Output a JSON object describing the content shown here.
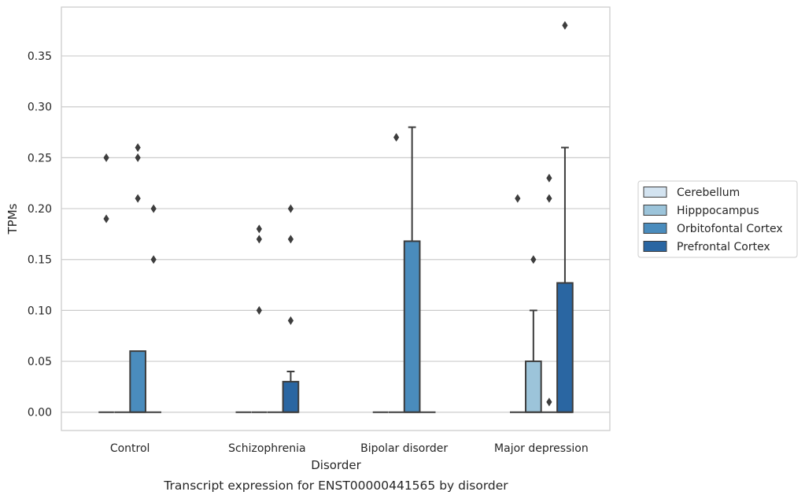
{
  "chart_data": {
    "type": "box",
    "title": "",
    "caption": "Transcript expression for ENST00000441565 by disorder",
    "xlabel": "Disorder",
    "ylabel": "TPMs",
    "ylim": [
      -0.018,
      0.398
    ],
    "yticks": [
      "0.00",
      "0.05",
      "0.10",
      "0.15",
      "0.20",
      "0.25",
      "0.30",
      "0.35"
    ],
    "yticks_values": [
      0,
      0.05,
      0.1,
      0.15,
      0.2,
      0.25,
      0.3,
      0.35
    ],
    "grid": "horizontal",
    "legend_position": "right",
    "categories": [
      "Control",
      "Schizophrenia",
      "Bipolar disorder",
      "Major depression"
    ],
    "series": [
      {
        "name": "Cerebellum",
        "color": "#d3e3f0",
        "boxes": [
          {
            "q1": 0,
            "median": 0,
            "q3": 0,
            "whisker_low": 0,
            "whisker_high": 0,
            "outliers": [
              0.19,
              0.25
            ]
          },
          {
            "q1": 0,
            "median": 0,
            "q3": 0,
            "whisker_low": 0,
            "whisker_high": 0,
            "outliers": []
          },
          {
            "q1": 0,
            "median": 0,
            "q3": 0,
            "whisker_low": 0,
            "whisker_high": 0,
            "outliers": []
          },
          {
            "q1": 0,
            "median": 0,
            "q3": 0,
            "whisker_low": 0,
            "whisker_high": 0,
            "outliers": [
              0.21
            ]
          }
        ]
      },
      {
        "name": "Hipppocampus",
        "color": "#9cc4da",
        "boxes": [
          {
            "q1": 0,
            "median": 0,
            "q3": 0,
            "whisker_low": 0,
            "whisker_high": 0,
            "outliers": []
          },
          {
            "q1": 0,
            "median": 0,
            "q3": 0,
            "whisker_low": 0,
            "whisker_high": 0,
            "outliers": [
              0.1,
              0.17,
              0.18
            ]
          },
          {
            "q1": 0,
            "median": 0,
            "q3": 0,
            "whisker_low": 0,
            "whisker_high": 0,
            "outliers": [
              0.27
            ]
          },
          {
            "q1": 0,
            "median": 0,
            "q3": 0.05,
            "whisker_low": 0,
            "whisker_high": 0.1,
            "outliers": [
              0.15
            ]
          }
        ]
      },
      {
        "name": "Orbitofontal Cortex",
        "color": "#4a8cbd",
        "boxes": [
          {
            "q1": 0,
            "median": 0,
            "q3": 0.06,
            "whisker_low": 0,
            "whisker_high": 0.06,
            "outliers": [
              0.21,
              0.25,
              0.26
            ]
          },
          {
            "q1": 0,
            "median": 0,
            "q3": 0,
            "whisker_low": 0,
            "whisker_high": 0,
            "outliers": []
          },
          {
            "q1": 0,
            "median": 0,
            "q3": 0.168,
            "whisker_low": 0,
            "whisker_high": 0.28,
            "outliers": []
          },
          {
            "q1": 0,
            "median": 0,
            "q3": 0,
            "whisker_low": 0,
            "whisker_high": 0,
            "outliers": [
              0.01,
              0.21,
              0.23
            ]
          }
        ]
      },
      {
        "name": "Prefrontal Cortex",
        "color": "#2a66a2",
        "boxes": [
          {
            "q1": 0,
            "median": 0,
            "q3": 0,
            "whisker_low": 0,
            "whisker_high": 0,
            "outliers": [
              0.15,
              0.2
            ]
          },
          {
            "q1": 0,
            "median": 0,
            "q3": 0.03,
            "whisker_low": 0,
            "whisker_high": 0.04,
            "outliers": [
              0.09,
              0.17,
              0.2
            ]
          },
          {
            "q1": 0,
            "median": 0,
            "q3": 0,
            "whisker_low": 0,
            "whisker_high": 0,
            "outliers": []
          },
          {
            "q1": 0,
            "median": 0,
            "q3": 0.127,
            "whisker_low": 0,
            "whisker_high": 0.26,
            "outliers": [
              0.38
            ]
          }
        ]
      }
    ]
  }
}
